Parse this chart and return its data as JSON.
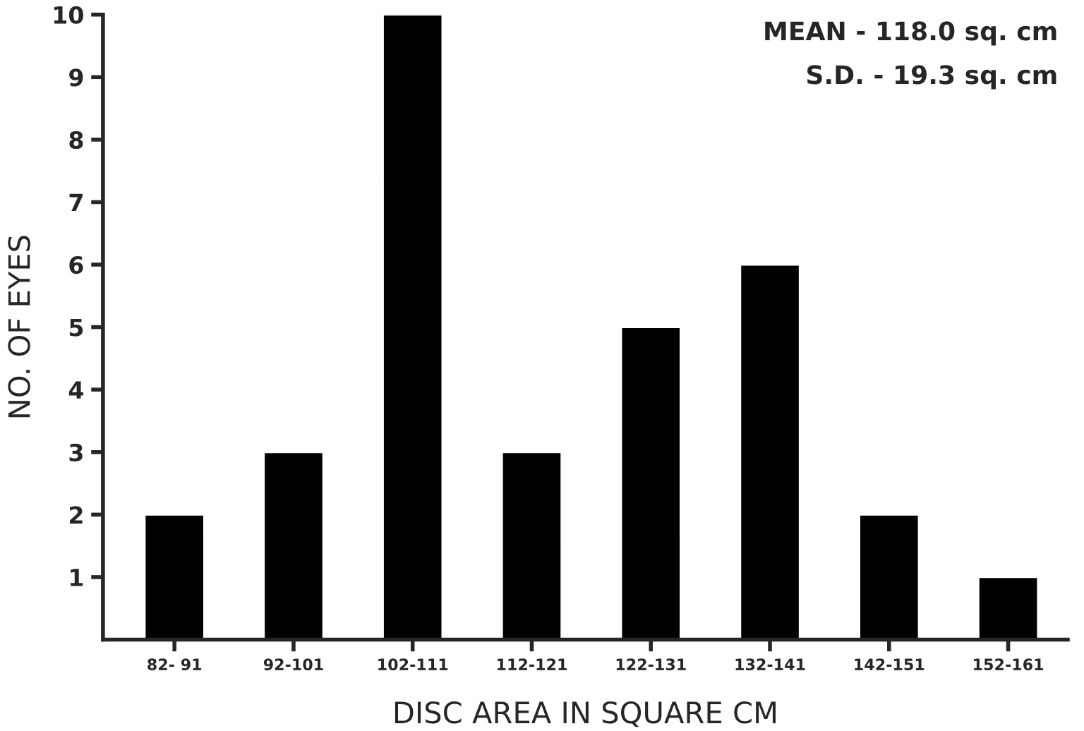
{
  "chart_data": {
    "type": "bar",
    "xlabel": "DISC AREA IN SQUARE CM",
    "ylabel": "NO. OF EYES",
    "categories": [
      "82- 91",
      "92-101",
      "102-111",
      "112-121",
      "122-131",
      "132-141",
      "142-151",
      "152-161"
    ],
    "values": [
      2,
      3,
      10,
      3,
      5,
      6,
      2,
      1
    ],
    "color": "#000000",
    "ylim": [
      0,
      10
    ],
    "yticks": [
      1,
      2,
      3,
      4,
      5,
      6,
      7,
      8,
      9,
      10
    ],
    "grid": false,
    "legend": false,
    "annotations": [
      "MEAN - 118.0 sq. cm",
      "S.D. - 19.3 sq. cm"
    ]
  }
}
